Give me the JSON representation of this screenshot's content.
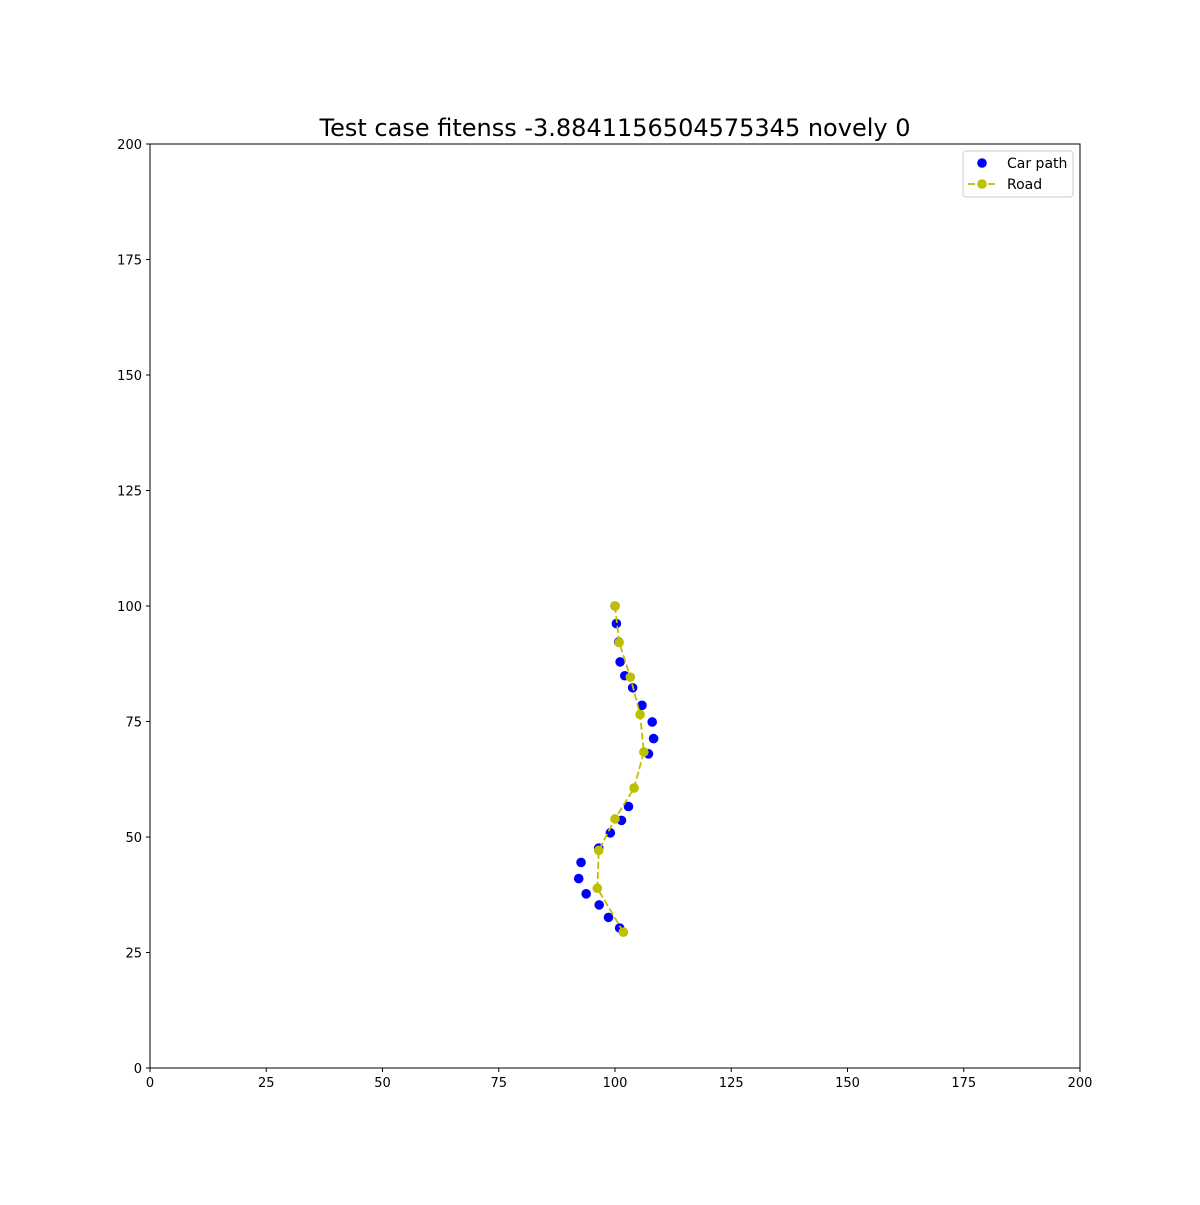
{
  "chart_data": {
    "type": "scatter",
    "title": "Test case fitenss -3.8841156504575345 novely 0",
    "xlabel": "",
    "ylabel": "",
    "xlim": [
      0,
      200
    ],
    "ylim": [
      0,
      200
    ],
    "xticks": [
      0,
      25,
      50,
      75,
      100,
      125,
      150,
      175,
      200
    ],
    "yticks": [
      0,
      25,
      50,
      75,
      100,
      125,
      150,
      175,
      200
    ],
    "grid": false,
    "legend_position": "top-right",
    "series": [
      {
        "name": "Car path",
        "style": "markers",
        "color": "#0000ff",
        "x": [
          100.0,
          100.3,
          100.8,
          101.1,
          102.1,
          103.8,
          105.8,
          108.0,
          108.3,
          107.2,
          102.9,
          101.4,
          99.0,
          96.5,
          92.7,
          92.2,
          93.8,
          96.6,
          98.6,
          101.0
        ],
        "y": [
          100.0,
          96.2,
          92.2,
          87.9,
          84.9,
          82.3,
          78.5,
          74.9,
          71.3,
          68.0,
          56.6,
          53.6,
          50.9,
          47.6,
          44.5,
          41.0,
          37.7,
          35.3,
          32.6,
          30.3
        ]
      },
      {
        "name": "Road",
        "style": "dashed-line-markers",
        "color": "#bfbf00",
        "x": [
          100.0,
          100.9,
          103.3,
          105.4,
          106.2,
          104.1,
          100.0,
          96.5,
          96.2,
          101.8
        ],
        "y": [
          100.0,
          92.1,
          84.6,
          76.5,
          68.4,
          60.6,
          53.9,
          47.1,
          38.9,
          29.4
        ]
      }
    ]
  }
}
